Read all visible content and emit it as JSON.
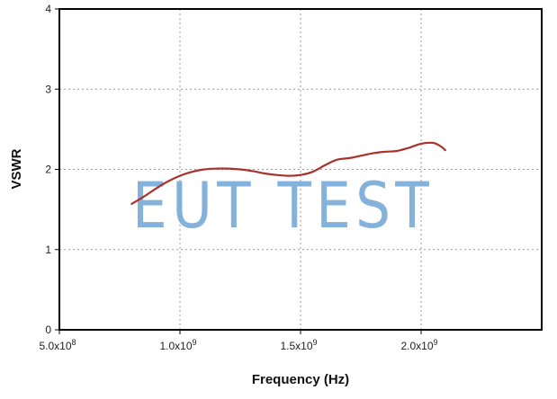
{
  "chart_data": {
    "type": "line",
    "title": "",
    "xlabel": "Frequency (Hz)",
    "ylabel": "VSWR",
    "xlim": [
      500000000,
      2500000000
    ],
    "ylim": [
      0,
      4
    ],
    "grid": true,
    "x_ticks": [
      {
        "value": 500000000,
        "label": "5.0x10",
        "exp": "8"
      },
      {
        "value": 1000000000,
        "label": "1.0x10",
        "exp": "9"
      },
      {
        "value": 1500000000,
        "label": "1.5x10",
        "exp": "9"
      },
      {
        "value": 2000000000,
        "label": "2.0x10",
        "exp": "9"
      }
    ],
    "y_ticks": [
      0,
      1,
      2,
      3,
      4
    ],
    "line_color": "#a8332c",
    "series": [
      {
        "x": [
          800000000,
          850000000,
          900000000,
          950000000,
          1000000000,
          1050000000,
          1100000000,
          1150000000,
          1200000000,
          1250000000,
          1300000000,
          1350000000,
          1400000000,
          1450000000,
          1500000000,
          1550000000,
          1600000000,
          1650000000,
          1700000000,
          1750000000,
          1800000000,
          1850000000,
          1900000000,
          1950000000,
          2000000000,
          2050000000,
          2080000000,
          2100000000
        ],
        "y": [
          1.57,
          1.66,
          1.76,
          1.85,
          1.92,
          1.97,
          2.0,
          2.01,
          2.01,
          2.0,
          1.98,
          1.95,
          1.93,
          1.92,
          1.93,
          1.97,
          2.05,
          2.12,
          2.14,
          2.17,
          2.2,
          2.22,
          2.23,
          2.27,
          2.32,
          2.33,
          2.29,
          2.24
        ]
      }
    ]
  },
  "watermark": "EUT TEST"
}
